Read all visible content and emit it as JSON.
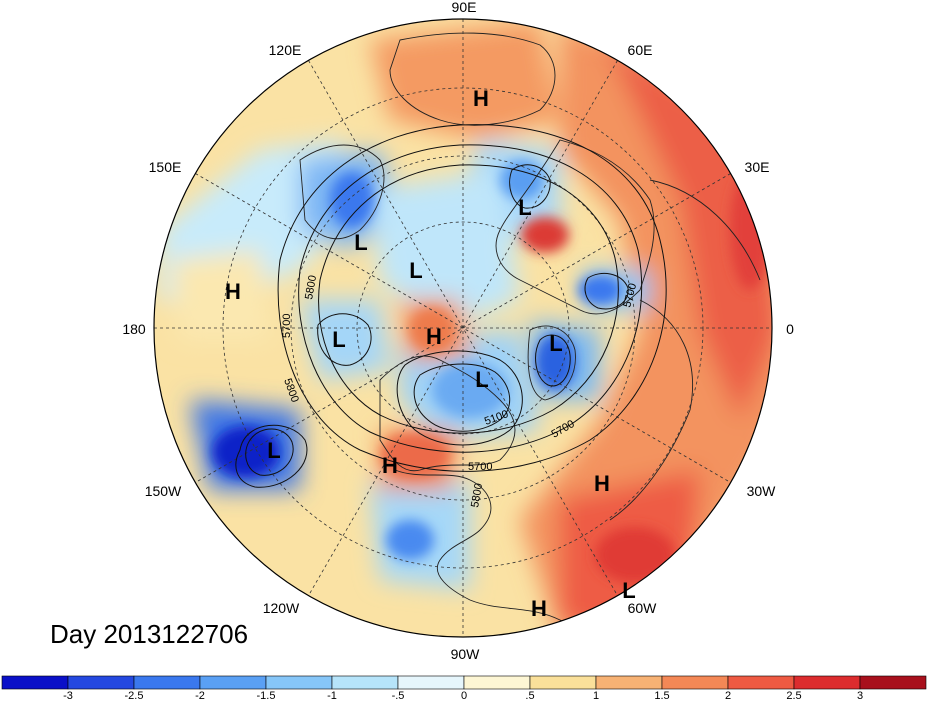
{
  "title": "Day 2013122706",
  "longitude_labels": {
    "e90": "90E",
    "e120": "120E",
    "e60": "60E",
    "e150": "150E",
    "e30": "30E",
    "e180": "180",
    "e0": "0",
    "w150": "150W",
    "w30": "30W",
    "w120": "120W",
    "w60": "60W",
    "w90": "90W"
  },
  "pressure_centers": [
    {
      "label": "H"
    },
    {
      "label": "L"
    },
    {
      "label": "L"
    },
    {
      "label": "L"
    },
    {
      "label": "H"
    },
    {
      "label": "L"
    },
    {
      "label": "H"
    },
    {
      "label": "L"
    },
    {
      "label": "L"
    },
    {
      "label": "L"
    },
    {
      "label": "H"
    },
    {
      "label": "H"
    },
    {
      "label": "L"
    },
    {
      "label": "H"
    }
  ],
  "contour_labels": [
    "5800",
    "5700",
    "5800",
    "5700",
    "5700",
    "5100",
    "5700",
    "5800"
  ],
  "colorbar": {
    "ticks": [
      "-3",
      "-2.5",
      "-2",
      "-1.5",
      "-1",
      "-.5",
      "0",
      ".5",
      "1",
      "1.5",
      "2",
      "2.5",
      "3"
    ],
    "colors": [
      "#0a10c8",
      "#2448e0",
      "#3a78ee",
      "#5aa0f4",
      "#86c6f8",
      "#b6e4fa",
      "#e6f6fc",
      "#fdf6d4",
      "#fae09a",
      "#f7b274",
      "#f48856",
      "#ee5a42",
      "#dc2c2e",
      "#a8101c"
    ]
  },
  "colors": {
    "land_outline": "#222222",
    "grid": "#333333"
  }
}
